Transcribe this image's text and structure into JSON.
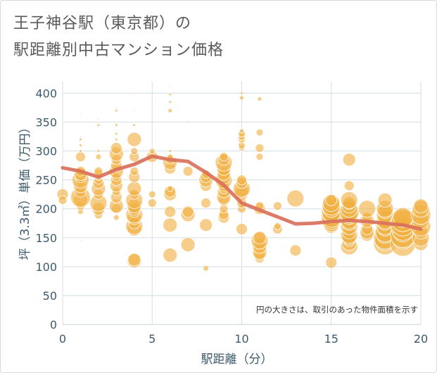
{
  "title": [
    "王子神谷駅（東京都）の",
    "駅距離別中古マンション価格"
  ],
  "xlabel": "駅距離（分）",
  "ylabel": "坪（3.3㎡）単価（万円）",
  "note": "円の大きさは、取引のあった物件面積を示す",
  "colors": {
    "bubble": "#f0b040",
    "line": "#d9705a",
    "grid": "#d5dde3",
    "axis_text": "#3d5a6c"
  },
  "chart_data": {
    "type": "scatter",
    "xlim": [
      0,
      20
    ],
    "ylim": [
      0,
      420
    ],
    "xticks": [
      0,
      5,
      10,
      15,
      20
    ],
    "yticks": [
      0,
      50,
      100,
      150,
      200,
      250,
      300,
      350,
      400
    ],
    "grid": true,
    "bubbles": [
      [
        0,
        225,
        8
      ],
      [
        0,
        215,
        6
      ],
      [
        1,
        145,
        1
      ],
      [
        1,
        195,
        4
      ],
      [
        1,
        205,
        6
      ],
      [
        1,
        215,
        10
      ],
      [
        1,
        220,
        14
      ],
      [
        1,
        230,
        8
      ],
      [
        1,
        240,
        10
      ],
      [
        1,
        245,
        6
      ],
      [
        1,
        250,
        12
      ],
      [
        1,
        255,
        8
      ],
      [
        1,
        260,
        9
      ],
      [
        1,
        265,
        7
      ],
      [
        1,
        290,
        7
      ],
      [
        1,
        300,
        2
      ],
      [
        1,
        310,
        2
      ],
      [
        1,
        320,
        2
      ],
      [
        1,
        325,
        1
      ],
      [
        1,
        365,
        1
      ],
      [
        2,
        190,
        6
      ],
      [
        2,
        200,
        9
      ],
      [
        2,
        210,
        12
      ],
      [
        2,
        225,
        7
      ],
      [
        2,
        235,
        10
      ],
      [
        2,
        245,
        8
      ],
      [
        2,
        250,
        6
      ],
      [
        2,
        255,
        5
      ],
      [
        2,
        260,
        7
      ],
      [
        2,
        265,
        6
      ],
      [
        2,
        290,
        4
      ],
      [
        2,
        300,
        2
      ],
      [
        2,
        345,
        2
      ],
      [
        2,
        355,
        1
      ],
      [
        3,
        185,
        4
      ],
      [
        3,
        200,
        7
      ],
      [
        3,
        205,
        10
      ],
      [
        3,
        220,
        8
      ],
      [
        3,
        230,
        6
      ],
      [
        3,
        240,
        9
      ],
      [
        3,
        250,
        8
      ],
      [
        3,
        255,
        6
      ],
      [
        3,
        265,
        10
      ],
      [
        3,
        275,
        8
      ],
      [
        3,
        285,
        7
      ],
      [
        3,
        295,
        10
      ],
      [
        3,
        305,
        8
      ],
      [
        3,
        320,
        2
      ],
      [
        3,
        330,
        2
      ],
      [
        3,
        345,
        2
      ],
      [
        3,
        370,
        2
      ],
      [
        3,
        375,
        1
      ],
      [
        4,
        110,
        10
      ],
      [
        4,
        112,
        9
      ],
      [
        4,
        165,
        10
      ],
      [
        4,
        170,
        12
      ],
      [
        4,
        175,
        8
      ],
      [
        4,
        185,
        10
      ],
      [
        4,
        190,
        12
      ],
      [
        4,
        195,
        8
      ],
      [
        4,
        200,
        9
      ],
      [
        4,
        205,
        10
      ],
      [
        4,
        215,
        12
      ],
      [
        4,
        225,
        7
      ],
      [
        4,
        235,
        10
      ],
      [
        4,
        255,
        8
      ],
      [
        4,
        265,
        6
      ],
      [
        4,
        290,
        7
      ],
      [
        4,
        300,
        5
      ],
      [
        4,
        320,
        10
      ],
      [
        4,
        345,
        2
      ],
      [
        4,
        370,
        1
      ],
      [
        4,
        398,
        1
      ],
      [
        5,
        210,
        6
      ],
      [
        5,
        225,
        5
      ],
      [
        5,
        290,
        8
      ],
      [
        5,
        300,
        4
      ],
      [
        5,
        395,
        1
      ],
      [
        6,
        120,
        10
      ],
      [
        6,
        172,
        10
      ],
      [
        6,
        195,
        8
      ],
      [
        6,
        225,
        9
      ],
      [
        6,
        230,
        8
      ],
      [
        6,
        235,
        4
      ],
      [
        6,
        270,
        8
      ],
      [
        6,
        280,
        10
      ],
      [
        6,
        285,
        6
      ],
      [
        6,
        290,
        4
      ],
      [
        6,
        300,
        2
      ],
      [
        6,
        370,
        3
      ],
      [
        6,
        385,
        2
      ],
      [
        6,
        398,
        2
      ],
      [
        6,
        410,
        1
      ],
      [
        7,
        138,
        10
      ],
      [
        7,
        190,
        10
      ],
      [
        7,
        195,
        8
      ],
      [
        7,
        265,
        7
      ],
      [
        7,
        352,
        1
      ],
      [
        8,
        97,
        4
      ],
      [
        8,
        172,
        9
      ],
      [
        8,
        210,
        7
      ],
      [
        8,
        240,
        8
      ],
      [
        8,
        250,
        10
      ],
      [
        8,
        255,
        8
      ],
      [
        8,
        260,
        6
      ],
      [
        9,
        185,
        8
      ],
      [
        9,
        190,
        7
      ],
      [
        9,
        200,
        6
      ],
      [
        9,
        215,
        8
      ],
      [
        9,
        220,
        10
      ],
      [
        9,
        230,
        9
      ],
      [
        9,
        235,
        7
      ],
      [
        9,
        240,
        8
      ],
      [
        9,
        250,
        12
      ],
      [
        9,
        255,
        10
      ],
      [
        9,
        260,
        9
      ],
      [
        9,
        270,
        10
      ],
      [
        9,
        280,
        12
      ],
      [
        9,
        285,
        8
      ],
      [
        9,
        290,
        6
      ],
      [
        10,
        165,
        8
      ],
      [
        10,
        200,
        6
      ],
      [
        10,
        210,
        7
      ],
      [
        10,
        225,
        9
      ],
      [
        10,
        230,
        10
      ],
      [
        10,
        235,
        12
      ],
      [
        10,
        245,
        8
      ],
      [
        10,
        250,
        7
      ],
      [
        10,
        305,
        4
      ],
      [
        10,
        310,
        5
      ],
      [
        10,
        320,
        5
      ],
      [
        10,
        325,
        5
      ],
      [
        10,
        330,
        5
      ],
      [
        10,
        335,
        3
      ],
      [
        10,
        392,
        3
      ],
      [
        10,
        400,
        2
      ],
      [
        11,
        115,
        7
      ],
      [
        11,
        120,
        8
      ],
      [
        11,
        125,
        10
      ],
      [
        11,
        135,
        10
      ],
      [
        11,
        140,
        8
      ],
      [
        11,
        145,
        12
      ],
      [
        11,
        150,
        9
      ],
      [
        11,
        200,
        8
      ],
      [
        11,
        205,
        6
      ],
      [
        11,
        290,
        5
      ],
      [
        11,
        305,
        6
      ],
      [
        11,
        332,
        5
      ],
      [
        11,
        390,
        3
      ],
      [
        12,
        165,
        7
      ],
      [
        12,
        170,
        5
      ],
      [
        12,
        205,
        6
      ],
      [
        13,
        128,
        8
      ],
      [
        13,
        218,
        12
      ],
      [
        15,
        107,
        8
      ],
      [
        15,
        170,
        10
      ],
      [
        15,
        175,
        12
      ],
      [
        15,
        180,
        13
      ],
      [
        15,
        185,
        14
      ],
      [
        15,
        190,
        12
      ],
      [
        15,
        195,
        14
      ],
      [
        15,
        200,
        12
      ],
      [
        15,
        205,
        13
      ],
      [
        15,
        210,
        12
      ],
      [
        15,
        215,
        8
      ],
      [
        16,
        135,
        12
      ],
      [
        16,
        140,
        10
      ],
      [
        16,
        145,
        8
      ],
      [
        16,
        150,
        10
      ],
      [
        16,
        155,
        12
      ],
      [
        16,
        160,
        10
      ],
      [
        16,
        165,
        8
      ],
      [
        16,
        170,
        12
      ],
      [
        16,
        175,
        10
      ],
      [
        16,
        180,
        12
      ],
      [
        16,
        185,
        10
      ],
      [
        16,
        190,
        12
      ],
      [
        16,
        195,
        14
      ],
      [
        16,
        200,
        12
      ],
      [
        16,
        205,
        10
      ],
      [
        16,
        210,
        9
      ],
      [
        16,
        215,
        12
      ],
      [
        16,
        240,
        7
      ],
      [
        16,
        285,
        9
      ],
      [
        17,
        155,
        9
      ],
      [
        17,
        160,
        10
      ],
      [
        17,
        165,
        8
      ],
      [
        17,
        180,
        10
      ],
      [
        17,
        185,
        7
      ],
      [
        17,
        200,
        12
      ],
      [
        18,
        140,
        16
      ],
      [
        18,
        145,
        14
      ],
      [
        18,
        150,
        16
      ],
      [
        18,
        155,
        12
      ],
      [
        18,
        160,
        14
      ],
      [
        18,
        165,
        10
      ],
      [
        18,
        170,
        12
      ],
      [
        18,
        175,
        10
      ],
      [
        18,
        180,
        12
      ],
      [
        18,
        185,
        10
      ],
      [
        18,
        190,
        12
      ],
      [
        18,
        195,
        10
      ],
      [
        18,
        200,
        12
      ],
      [
        18,
        215,
        10
      ],
      [
        19,
        140,
        18
      ],
      [
        19,
        150,
        16
      ],
      [
        19,
        155,
        18
      ],
      [
        19,
        160,
        14
      ],
      [
        19,
        165,
        16
      ],
      [
        19,
        170,
        14
      ],
      [
        19,
        175,
        18
      ],
      [
        19,
        180,
        16
      ],
      [
        19,
        185,
        14
      ],
      [
        20,
        140,
        10
      ],
      [
        20,
        150,
        12
      ],
      [
        20,
        160,
        10
      ],
      [
        20,
        170,
        14
      ],
      [
        20,
        180,
        12
      ],
      [
        20,
        190,
        14
      ],
      [
        20,
        200,
        12
      ],
      [
        20,
        205,
        10
      ]
    ],
    "trend": {
      "x": [
        0,
        1,
        2,
        3,
        4,
        5,
        6,
        7,
        8,
        9,
        10,
        11,
        12,
        13,
        14,
        15,
        16,
        17,
        18,
        19,
        20
      ],
      "y": [
        271,
        265,
        255,
        268,
        277,
        291,
        285,
        282,
        263,
        241,
        210,
        198,
        186,
        174,
        175,
        178,
        180,
        178,
        175,
        172,
        165
      ]
    }
  }
}
